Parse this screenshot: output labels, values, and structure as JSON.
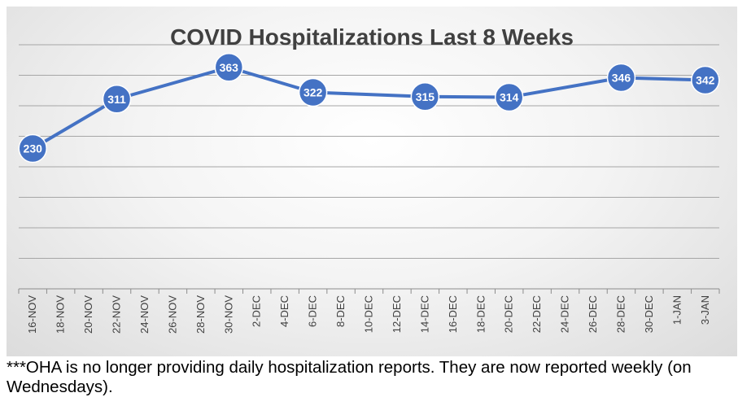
{
  "chart_data": {
    "type": "line",
    "title": "COVID Hospitalizations Last 8 Weeks",
    "xlabel": "",
    "ylabel": "",
    "categories": [
      "16-NOV",
      "18-NOV",
      "20-NOV",
      "22-NOV",
      "24-NOV",
      "26-NOV",
      "28-NOV",
      "30-NOV",
      "2-DEC",
      "4-DEC",
      "6-DEC",
      "8-DEC",
      "10-DEC",
      "12-DEC",
      "14-DEC",
      "16-DEC",
      "18-DEC",
      "20-DEC",
      "22-DEC",
      "24-DEC",
      "26-DEC",
      "28-DEC",
      "30-DEC",
      "1-JAN",
      "3-JAN"
    ],
    "series": [
      {
        "name": "Hospitalizations",
        "x": [
          "16-NOV",
          "22-NOV",
          "30-NOV",
          "6-DEC",
          "14-DEC",
          "20-DEC",
          "28-DEC",
          "3-JAN"
        ],
        "values": [
          230,
          311,
          363,
          322,
          315,
          314,
          346,
          342
        ]
      }
    ],
    "ylim": [
      0,
      400
    ],
    "gridlines": true,
    "color": "#4472C4",
    "data_labels": true
  },
  "footnote": "***OHA is no longer providing daily hospitalization reports.  They are now reported weekly (on Wednesdays)."
}
